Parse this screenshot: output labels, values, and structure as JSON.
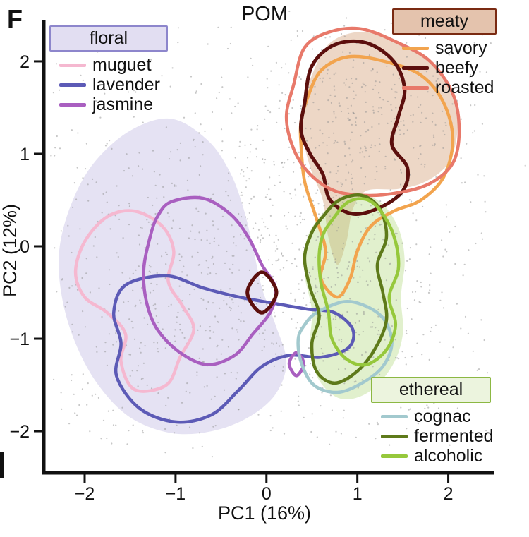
{
  "panel_label": "F",
  "legends": [
    {
      "title": "floral",
      "header_fill": "#e2def2",
      "border": "#8d86cc",
      "items": [
        {
          "label": "muguet",
          "color": "#f5b8d0"
        },
        {
          "label": "lavender",
          "color": "#5c5ab6"
        },
        {
          "label": "jasmine",
          "color": "#a95fc0"
        }
      ]
    },
    {
      "title": "meaty",
      "header_fill": "#e4c3ad",
      "border": "#7a2a12",
      "items": [
        {
          "label": "savory",
          "color": "#f2a44e"
        },
        {
          "label": "beefy",
          "color": "#5c0f0d"
        },
        {
          "label": "roasted",
          "color": "#e8796a"
        }
      ]
    },
    {
      "title": "ethereal",
      "header_fill": "#ecf4de",
      "border": "#8cb843",
      "items": [
        {
          "label": "cognac",
          "color": "#a2c9ce"
        },
        {
          "label": "fermented",
          "color": "#5e7a1a"
        },
        {
          "label": "alcoholic",
          "color": "#96c83c"
        }
      ]
    }
  ],
  "chart_data": {
    "type": "scatter",
    "title": "POM",
    "xlabel": "PC1 (16%)",
    "ylabel": "PC2 (12%)",
    "xlim": [
      -2.45,
      2.5
    ],
    "ylim": [
      -2.45,
      2.45
    ],
    "x_ticks": [
      -2,
      -1,
      0,
      1,
      2
    ],
    "y_ticks": [
      -2,
      -1,
      0,
      1,
      2
    ],
    "grid": false,
    "legend_position": "inside",
    "background_dot_color": "#909090",
    "background_dots": {
      "seed": 42,
      "radius": 1.1,
      "opacity": 0.5,
      "uniform": {
        "count": 520,
        "x": [
          -2.35,
          2.45
        ],
        "y": [
          -2.15,
          2.38
        ]
      },
      "clusters": [
        {
          "count": 280,
          "center": [
            -1.1,
            -0.55
          ],
          "sd": [
            0.75,
            0.75
          ]
        },
        {
          "count": 240,
          "center": [
            1.15,
            1.35
          ],
          "sd": [
            0.5,
            0.55
          ]
        },
        {
          "count": 200,
          "center": [
            0.95,
            -0.6
          ],
          "sd": [
            0.42,
            0.6
          ]
        },
        {
          "count": 130,
          "center": [
            0.1,
            0.4
          ],
          "sd": [
            0.5,
            0.7
          ]
        }
      ]
    },
    "shaded_regions": [
      {
        "name": "floral-region",
        "fill": "#a8a0d8",
        "opacity": 0.3,
        "points": [
          [
            -1.5,
            1.25
          ],
          [
            -1.05,
            1.38
          ],
          [
            -0.65,
            1.15
          ],
          [
            -0.4,
            0.8
          ],
          [
            -0.25,
            0.4
          ],
          [
            -0.15,
            0.0
          ],
          [
            -0.05,
            -0.45
          ],
          [
            0.1,
            -0.85
          ],
          [
            0.22,
            -1.25
          ],
          [
            0.1,
            -1.6
          ],
          [
            -0.2,
            -1.85
          ],
          [
            -0.6,
            -2.0
          ],
          [
            -1.05,
            -2.02
          ],
          [
            -1.5,
            -1.85
          ],
          [
            -1.85,
            -1.5
          ],
          [
            -2.1,
            -1.05
          ],
          [
            -2.25,
            -0.55
          ],
          [
            -2.28,
            -0.05
          ],
          [
            -2.15,
            0.45
          ],
          [
            -1.9,
            0.9
          ]
        ]
      },
      {
        "name": "meaty-region",
        "fill": "#c8834f",
        "opacity": 0.32,
        "points": [
          [
            0.5,
            1.85
          ],
          [
            0.7,
            2.2
          ],
          [
            1.05,
            2.32
          ],
          [
            1.45,
            2.22
          ],
          [
            1.8,
            2.0
          ],
          [
            2.05,
            1.65
          ],
          [
            2.1,
            1.25
          ],
          [
            2.0,
            0.9
          ],
          [
            1.75,
            0.7
          ],
          [
            1.45,
            0.62
          ],
          [
            1.1,
            0.6
          ],
          [
            0.95,
            0.4
          ],
          [
            0.88,
            0.05
          ],
          [
            0.78,
            -0.2
          ],
          [
            0.68,
            0.1
          ],
          [
            0.62,
            0.5
          ],
          [
            0.5,
            0.8
          ],
          [
            0.42,
            1.1
          ],
          [
            0.4,
            1.5
          ]
        ]
      },
      {
        "name": "ethereal-region",
        "fill": "#a8d36f",
        "opacity": 0.35,
        "points": [
          [
            0.68,
            0.42
          ],
          [
            0.95,
            0.58
          ],
          [
            1.25,
            0.48
          ],
          [
            1.45,
            0.2
          ],
          [
            1.52,
            -0.15
          ],
          [
            1.48,
            -0.55
          ],
          [
            1.5,
            -0.95
          ],
          [
            1.38,
            -1.3
          ],
          [
            1.12,
            -1.58
          ],
          [
            0.82,
            -1.65
          ],
          [
            0.58,
            -1.45
          ],
          [
            0.48,
            -1.1
          ],
          [
            0.5,
            -0.7
          ],
          [
            0.42,
            -0.3
          ],
          [
            0.45,
            0.1
          ]
        ]
      }
    ],
    "contour_groups": [
      {
        "name": "muguet",
        "family": "floral",
        "color": "#f5b8d0",
        "stroke_width": 4.5,
        "contours": [
          [
            [
              -1.75,
              0.32
            ],
            [
              -1.45,
              0.38
            ],
            [
              -1.15,
              0.22
            ],
            [
              -1.02,
              -0.05
            ],
            [
              -1.08,
              -0.38
            ],
            [
              -0.92,
              -0.65
            ],
            [
              -0.8,
              -0.9
            ],
            [
              -0.95,
              -1.2
            ],
            [
              -1.1,
              -1.5
            ],
            [
              -1.45,
              -1.55
            ],
            [
              -1.6,
              -1.25
            ],
            [
              -1.55,
              -0.95
            ],
            [
              -1.75,
              -0.72
            ],
            [
              -2.0,
              -0.55
            ],
            [
              -2.1,
              -0.28
            ],
            [
              -2.0,
              0.05
            ]
          ]
        ]
      },
      {
        "name": "lavender",
        "family": "floral",
        "color": "#5c5ab6",
        "stroke_width": 4.5,
        "contours": [
          [
            [
              -1.55,
              -0.42
            ],
            [
              -1.1,
              -0.32
            ],
            [
              -0.7,
              -0.45
            ],
            [
              -0.3,
              -0.55
            ],
            [
              0.1,
              -0.62
            ],
            [
              0.45,
              -0.68
            ],
            [
              0.75,
              -0.72
            ],
            [
              0.95,
              -0.9
            ],
            [
              0.9,
              -1.1
            ],
            [
              0.6,
              -1.2
            ],
            [
              0.25,
              -1.18
            ],
            [
              -0.05,
              -1.3
            ],
            [
              -0.3,
              -1.55
            ],
            [
              -0.6,
              -1.82
            ],
            [
              -1.0,
              -1.9
            ],
            [
              -1.4,
              -1.75
            ],
            [
              -1.65,
              -1.4
            ],
            [
              -1.6,
              -1.05
            ],
            [
              -1.68,
              -0.72
            ]
          ]
        ]
      },
      {
        "name": "jasmine",
        "family": "floral",
        "color": "#a95fc0",
        "stroke_width": 4.5,
        "contours": [
          [
            [
              -1.05,
              0.48
            ],
            [
              -0.7,
              0.52
            ],
            [
              -0.4,
              0.35
            ],
            [
              -0.2,
              0.1
            ],
            [
              -0.05,
              -0.2
            ],
            [
              0.1,
              -0.45
            ],
            [
              0.05,
              -0.7
            ],
            [
              -0.15,
              -0.95
            ],
            [
              -0.35,
              -1.18
            ],
            [
              -0.65,
              -1.28
            ],
            [
              -0.95,
              -1.15
            ],
            [
              -1.2,
              -0.9
            ],
            [
              -1.32,
              -0.6
            ],
            [
              -1.35,
              -0.25
            ],
            [
              -1.28,
              0.1
            ],
            [
              -1.2,
              0.32
            ]
          ],
          [
            [
              0.33,
              -1.15
            ],
            [
              0.41,
              -1.27
            ],
            [
              0.33,
              -1.4
            ],
            [
              0.25,
              -1.27
            ]
          ]
        ]
      },
      {
        "name": "savory",
        "family": "meaty",
        "color": "#f2a44e",
        "stroke_width": 4.5,
        "contours": [
          [
            [
              0.45,
              1.6
            ],
            [
              0.6,
              1.9
            ],
            [
              0.9,
              2.05
            ],
            [
              1.3,
              2.0
            ],
            [
              1.7,
              1.85
            ],
            [
              1.95,
              1.55
            ],
            [
              2.05,
              1.15
            ],
            [
              1.95,
              0.75
            ],
            [
              1.7,
              0.5
            ],
            [
              1.4,
              0.38
            ],
            [
              1.15,
              0.22
            ],
            [
              1.0,
              -0.05
            ],
            [
              0.92,
              -0.35
            ],
            [
              0.78,
              -0.55
            ],
            [
              0.6,
              -0.35
            ],
            [
              0.65,
              -0.05
            ],
            [
              0.55,
              0.3
            ],
            [
              0.42,
              0.7
            ],
            [
              0.38,
              1.1
            ],
            [
              0.38,
              1.35
            ]
          ]
        ]
      },
      {
        "name": "beefy",
        "family": "meaty",
        "color": "#5c0f0d",
        "stroke_width": 5,
        "contours": [
          [
            [
              0.42,
              1.55
            ],
            [
              0.5,
              1.95
            ],
            [
              0.75,
              2.18
            ],
            [
              1.1,
              2.2
            ],
            [
              1.4,
              2.0
            ],
            [
              1.52,
              1.7
            ],
            [
              1.45,
              1.4
            ],
            [
              1.38,
              1.1
            ],
            [
              1.55,
              0.85
            ],
            [
              1.5,
              0.6
            ],
            [
              1.25,
              0.42
            ],
            [
              0.95,
              0.35
            ],
            [
              0.7,
              0.5
            ],
            [
              0.62,
              0.78
            ],
            [
              0.48,
              1.0
            ],
            [
              0.38,
              1.25
            ]
          ],
          [
            [
              -0.05,
              -0.28
            ],
            [
              0.11,
              -0.5
            ],
            [
              -0.05,
              -0.72
            ],
            [
              -0.21,
              -0.5
            ]
          ]
        ]
      },
      {
        "name": "roasted",
        "family": "meaty",
        "color": "#e8796a",
        "stroke_width": 4.5,
        "contours": [
          [
            [
              0.3,
              1.75
            ],
            [
              0.42,
              2.15
            ],
            [
              0.7,
              2.32
            ],
            [
              1.05,
              2.35
            ],
            [
              1.45,
              2.2
            ],
            [
              1.8,
              2.0
            ],
            [
              2.05,
              1.65
            ],
            [
              2.12,
              1.25
            ],
            [
              2.05,
              0.9
            ],
            [
              1.8,
              0.68
            ],
            [
              1.45,
              0.58
            ],
            [
              1.1,
              0.55
            ],
            [
              0.75,
              0.6
            ],
            [
              0.48,
              0.78
            ],
            [
              0.3,
              1.05
            ],
            [
              0.22,
              1.4
            ]
          ]
        ]
      },
      {
        "name": "cognac",
        "family": "ethereal",
        "color": "#a2c9ce",
        "stroke_width": 4.5,
        "contours": [
          [
            [
              0.55,
              -0.72
            ],
            [
              0.85,
              -0.6
            ],
            [
              1.1,
              -0.65
            ],
            [
              1.3,
              -0.8
            ],
            [
              1.38,
              -1.05
            ],
            [
              1.28,
              -1.3
            ],
            [
              1.05,
              -1.48
            ],
            [
              0.78,
              -1.58
            ],
            [
              0.52,
              -1.5
            ],
            [
              0.38,
              -1.25
            ],
            [
              0.35,
              -1.0
            ],
            [
              0.42,
              -0.85
            ]
          ]
        ]
      },
      {
        "name": "fermented",
        "family": "ethereal",
        "color": "#5e7a1a",
        "stroke_width": 4.5,
        "contours": [
          [
            [
              0.62,
              0.32
            ],
            [
              0.8,
              0.5
            ],
            [
              1.05,
              0.55
            ],
            [
              1.25,
              0.4
            ],
            [
              1.32,
              0.1
            ],
            [
              1.22,
              -0.2
            ],
            [
              1.28,
              -0.5
            ],
            [
              1.32,
              -0.8
            ],
            [
              1.2,
              -1.1
            ],
            [
              1.0,
              -1.35
            ],
            [
              0.75,
              -1.48
            ],
            [
              0.55,
              -1.35
            ],
            [
              0.5,
              -1.05
            ],
            [
              0.58,
              -0.75
            ],
            [
              0.48,
              -0.45
            ],
            [
              0.42,
              -0.12
            ],
            [
              0.5,
              0.15
            ]
          ]
        ]
      },
      {
        "name": "alcoholic",
        "family": "ethereal",
        "color": "#96c83c",
        "stroke_width": 4.5,
        "contours": [
          [
            [
              0.72,
              0.28
            ],
            [
              0.9,
              0.48
            ],
            [
              1.12,
              0.5
            ],
            [
              1.3,
              0.32
            ],
            [
              1.42,
              0.05
            ],
            [
              1.45,
              -0.25
            ],
            [
              1.35,
              -0.55
            ],
            [
              1.42,
              -0.85
            ],
            [
              1.32,
              -1.12
            ],
            [
              1.1,
              -1.28
            ],
            [
              0.88,
              -1.22
            ],
            [
              0.72,
              -1.0
            ],
            [
              0.68,
              -0.7
            ],
            [
              0.6,
              -0.4
            ],
            [
              0.58,
              -0.1
            ],
            [
              0.62,
              0.12
            ]
          ]
        ]
      }
    ]
  }
}
